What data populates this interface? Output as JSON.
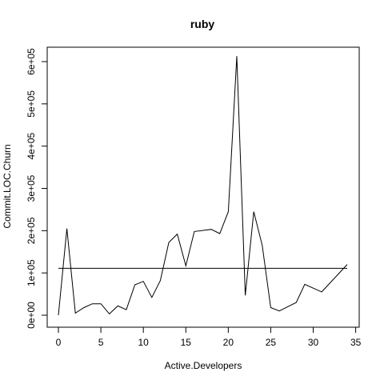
{
  "chart_data": {
    "type": "line",
    "title": "ruby",
    "xlabel": "Active.Developers",
    "ylabel": "Commit.LOC.Churn",
    "xlim": [
      0,
      35
    ],
    "ylim": [
      0,
      620000
    ],
    "x_ticks": [
      0,
      5,
      10,
      15,
      20,
      25,
      30,
      35
    ],
    "x_tick_labels": [
      "0",
      "5",
      "10",
      "15",
      "20",
      "25",
      "30",
      "35"
    ],
    "y_ticks": [
      0,
      100000,
      200000,
      300000,
      400000,
      500000,
      600000
    ],
    "y_tick_labels": [
      "0e+00",
      "1e+05",
      "2e+05",
      "3e+05",
      "4e+05",
      "5e+05",
      "6e+05"
    ],
    "grid": false,
    "series": [
      {
        "x": [
          0,
          1,
          2,
          3,
          4,
          5,
          6,
          7,
          8,
          9,
          10,
          11,
          12,
          13,
          14,
          15,
          16,
          18,
          19,
          20,
          21,
          22,
          23,
          24,
          25,
          26,
          28,
          29,
          31,
          34
        ],
        "y": [
          0,
          205000,
          5000,
          18000,
          27000,
          27000,
          3000,
          22000,
          13000,
          72000,
          80000,
          42000,
          82000,
          172000,
          192000,
          117000,
          198000,
          203000,
          193000,
          245000,
          613000,
          47000,
          245000,
          165000,
          18000,
          10000,
          30000,
          73000,
          55000,
          120000
        ]
      }
    ],
    "reference_lines": [
      {
        "y": 111000
      }
    ]
  }
}
